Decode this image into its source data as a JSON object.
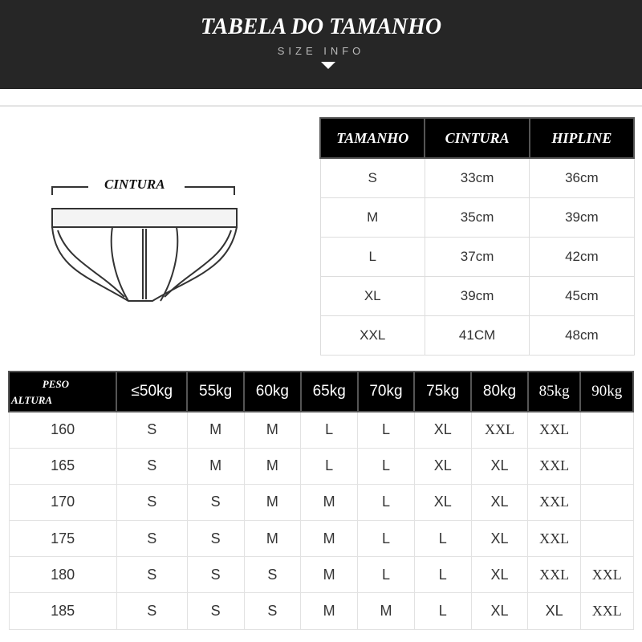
{
  "header": {
    "title": "TABELA DO TAMANHO",
    "subtitle": "SIZE INFO"
  },
  "illustration": {
    "label": "CINTURA"
  },
  "size_table": {
    "headers": [
      "TAMANHO",
      "CINTURA",
      "HIPLINE"
    ],
    "rows": [
      [
        "S",
        "33cm",
        "36cm"
      ],
      [
        "M",
        "35cm",
        "39cm"
      ],
      [
        "L",
        "37cm",
        "42cm"
      ],
      [
        "XL",
        "39cm",
        "45cm"
      ],
      [
        "XXL",
        "41CM",
        "48cm"
      ]
    ]
  },
  "fit_table": {
    "corner_top": "PESO",
    "corner_bottom": "ALTURA",
    "weights": [
      "≤50kg",
      "55kg",
      "60kg",
      "65kg",
      "70kg",
      "75kg",
      "80kg",
      "85kg",
      "90kg"
    ],
    "rows": [
      {
        "height": "160",
        "sizes": [
          "S",
          "M",
          "M",
          "L",
          "L",
          "XL",
          "XXL",
          "XXL",
          ""
        ]
      },
      {
        "height": "165",
        "sizes": [
          "S",
          "M",
          "M",
          "L",
          "L",
          "XL",
          "XL",
          "XXL",
          ""
        ]
      },
      {
        "height": "170",
        "sizes": [
          "S",
          "S",
          "M",
          "M",
          "L",
          "XL",
          "XL",
          "XXL",
          ""
        ]
      },
      {
        "height": "175",
        "sizes": [
          "S",
          "S",
          "M",
          "M",
          "L",
          "L",
          "XL",
          "XXL",
          ""
        ]
      },
      {
        "height": "180",
        "sizes": [
          "S",
          "S",
          "S",
          "M",
          "L",
          "L",
          "XL",
          "XXL",
          "XXL"
        ]
      },
      {
        "height": "185",
        "sizes": [
          "S",
          "S",
          "S",
          "M",
          "M",
          "L",
          "XL",
          "XL",
          "XXL"
        ]
      }
    ]
  },
  "colors": {
    "S": "#3ec94a",
    "M": "#3434c4",
    "L": "#dca64a",
    "XL": "#8a2be2",
    "XXL": "#e04444",
    "header_bg": "#262626"
  }
}
